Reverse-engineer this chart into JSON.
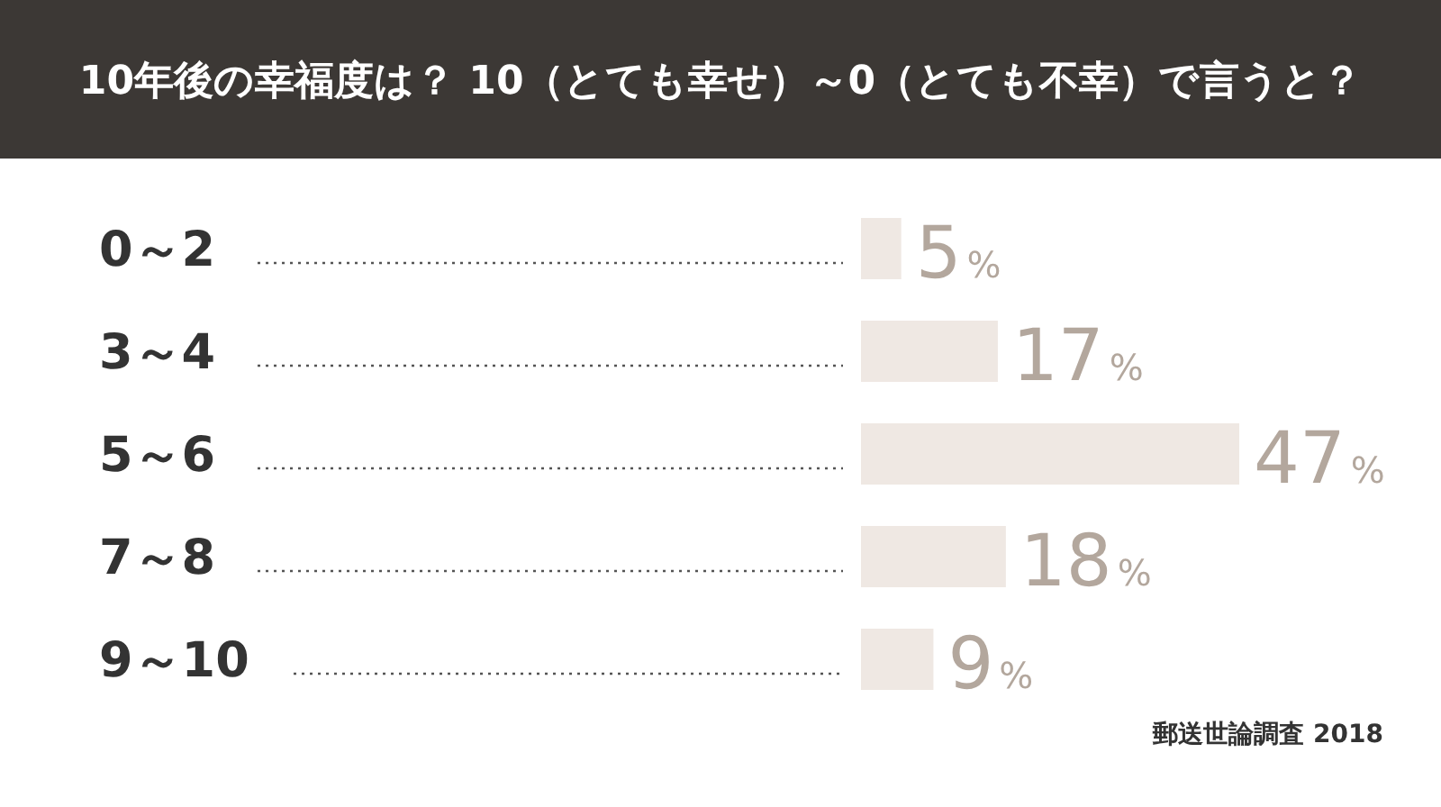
{
  "chart_data": {
    "type": "bar",
    "orientation": "horizontal",
    "title": "10年後の幸福度は？ 10（とても幸せ）～0（とても不幸）で言うと？",
    "categories": [
      "0～2",
      "3～4",
      "5～6",
      "7～8",
      "9～10"
    ],
    "values": [
      5,
      17,
      47,
      18,
      9
    ],
    "value_labels": [
      "5%",
      "17%",
      "47%",
      "18%",
      "9%"
    ],
    "color": "#efe8e3",
    "annotations": [
      "郵送世論調査 2018"
    ]
  }
}
